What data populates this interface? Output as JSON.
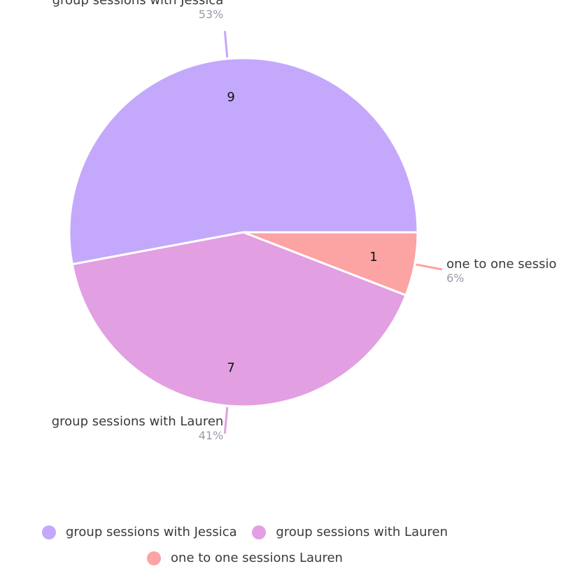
{
  "chart_data": {
    "type": "pie",
    "categories": [
      "group sessions with Jessica",
      "group sessions with Lauren",
      "one to one sessions Lauren"
    ],
    "values": [
      9,
      7,
      1
    ],
    "percent_labels": [
      "53%",
      "41%",
      "6%"
    ],
    "outer_labels": [
      "group sessions with Jessica",
      "group sessions with Lauren",
      "one to one sessio"
    ],
    "colors": [
      "#c4a8fc",
      "#e29fe2",
      "#fca3a3"
    ],
    "legend_position": "bottom"
  },
  "legend": {
    "items": [
      {
        "label": "group sessions with Jessica",
        "color": "#c4a8fc"
      },
      {
        "label": "group sessions with Lauren",
        "color": "#e29fe2"
      },
      {
        "label": "one to one sessions Lauren",
        "color": "#fca3a3"
      }
    ]
  }
}
